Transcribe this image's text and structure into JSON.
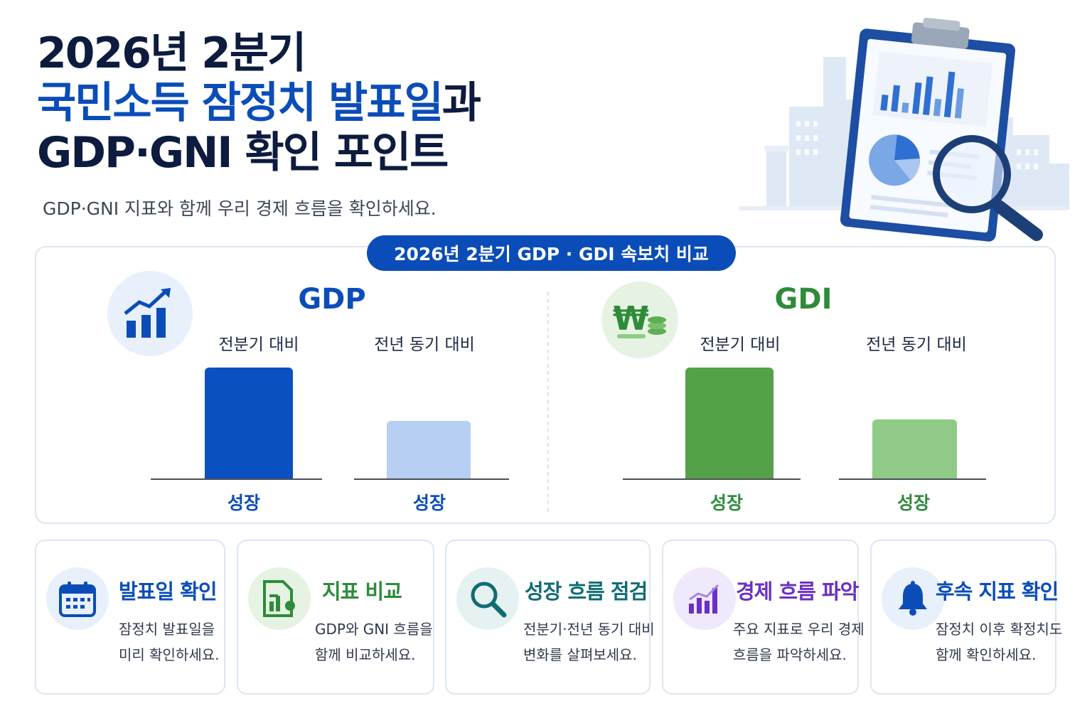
{
  "title": {
    "line1": "2026년 2분기",
    "line2_blue": "국민소득 잠정치 발표일",
    "line2_dark": "과",
    "line3": "GDP·GNI 확인 포인트"
  },
  "subtitle": "GDP·GNI 지표와 함께 우리 경제 흐름을 확인하세요.",
  "comparison": {
    "badge": "2026년 2분기 GDP · GDI 속보치 비교",
    "groups": [
      {
        "name": "GDP",
        "icon": "growth-chart-icon",
        "color": "#0b4db8",
        "columns": [
          {
            "label": "전분기 대비",
            "bar_label": "성장",
            "relative_level": 1.0,
            "color": "#0b50c0"
          },
          {
            "label": "전년 동기 대비",
            "bar_label": "성장",
            "relative_level": 0.52,
            "color": "#b6cff2"
          }
        ]
      },
      {
        "name": "GDI",
        "icon": "won-coins-icon",
        "color": "#2e8b3a",
        "columns": [
          {
            "label": "전분기 대비",
            "bar_label": "성장",
            "relative_level": 1.0,
            "color": "#55a14a"
          },
          {
            "label": "전년 동기 대비",
            "bar_label": "성장",
            "relative_level": 0.53,
            "color": "#8fcb86"
          }
        ]
      }
    ]
  },
  "cards": [
    {
      "title": "발표일 확인",
      "desc1": "잠정치 발표일을",
      "desc2": "미리 확인하세요.",
      "icon": "calendar-icon",
      "color": "#0b4db8"
    },
    {
      "title": "지표 비교",
      "desc1": "GDP와 GNI 흐름을",
      "desc2": "함께 비교하세요.",
      "icon": "report-chart-icon",
      "color": "#2e8b3a"
    },
    {
      "title": "성장 흐름 점검",
      "desc1": "전분기·전년 동기 대비",
      "desc2": "변화를 살펴보세요.",
      "icon": "search-icon",
      "color": "#0f6c74"
    },
    {
      "title": "경제 흐름 파악",
      "desc1": "주요 지표로 우리 경제",
      "desc2": "흐름을 파악하세요.",
      "icon": "bar-chart-icon",
      "color": "#6a2fc4"
    },
    {
      "title": "후속 지표 확인",
      "desc1": "잠정치 이후 확정치도",
      "desc2": "함께 확인하세요.",
      "icon": "bell-icon",
      "color": "#0b4db8"
    }
  ]
}
